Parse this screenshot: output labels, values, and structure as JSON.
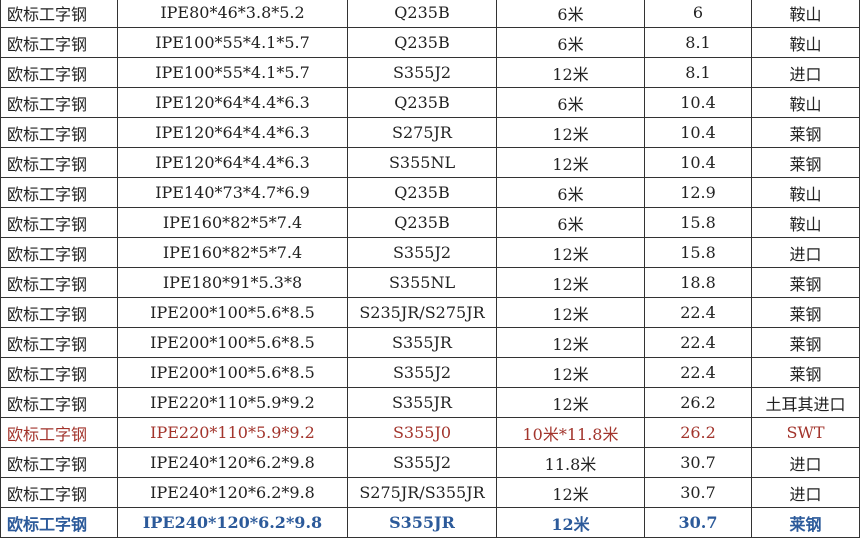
{
  "table": {
    "rows": [
      [
        "欧标工字钢",
        "IPE80*46*3.8*5.2",
        "Q235B",
        "6米",
        "6",
        "鞍山"
      ],
      [
        "欧标工字钢",
        "IPE100*55*4.1*5.7",
        "Q235B",
        "6米",
        "8.1",
        "鞍山"
      ],
      [
        "欧标工字钢",
        "IPE100*55*4.1*5.7",
        "S355J2",
        "12米",
        "8.1",
        "进口"
      ],
      [
        "欧标工字钢",
        "IPE120*64*4.4*6.3",
        "Q235B",
        "6米",
        "10.4",
        "鞍山"
      ],
      [
        "欧标工字钢",
        "IPE120*64*4.4*6.3",
        "S275JR",
        "12米",
        "10.4",
        "莱钢"
      ],
      [
        "欧标工字钢",
        "IPE120*64*4.4*6.3",
        "S355NL",
        "12米",
        "10.4",
        "莱钢"
      ],
      [
        "欧标工字钢",
        "IPE140*73*4.7*6.9",
        "Q235B",
        "6米",
        "12.9",
        "鞍山"
      ],
      [
        "欧标工字钢",
        "IPE160*82*5*7.4",
        "Q235B",
        "6米",
        "15.8",
        "鞍山"
      ],
      [
        "欧标工字钢",
        "IPE160*82*5*7.4",
        "S355J2",
        "12米",
        "15.8",
        "进口"
      ],
      [
        "欧标工字钢",
        "IPE180*91*5.3*8",
        "S355NL",
        "12米",
        "18.8",
        "莱钢"
      ],
      [
        "欧标工字钢",
        "IPE200*100*5.6*8.5",
        "S235JR/S275JR",
        "12米",
        "22.4",
        "莱钢"
      ],
      [
        "欧标工字钢",
        "IPE200*100*5.6*8.5",
        "S355JR",
        "12米",
        "22.4",
        "莱钢"
      ],
      [
        "欧标工字钢",
        "IPE200*100*5.6*8.5",
        "S355J2",
        "12米",
        "22.4",
        "莱钢"
      ],
      [
        "欧标工字钢",
        "IPE220*110*5.9*9.2",
        "S355JR",
        "12米",
        "26.2",
        "土耳其进口"
      ],
      [
        "欧标工字钢",
        "IPE220*110*5.9*9.2",
        "S355J0",
        "10米*11.8米",
        "26.2",
        "SWT"
      ],
      [
        "欧标工字钢",
        "IPE240*120*6.2*9.8",
        "S355J2",
        "11.8米",
        "30.7",
        "进口"
      ],
      [
        "欧标工字钢",
        "IPE240*120*6.2*9.8",
        "S275JR/S355JR",
        "12米",
        "30.7",
        "进口"
      ],
      [
        "欧标工字钢",
        "IPE240*120*6.2*9.8",
        "S355JR",
        "12米",
        "30.7",
        "莱钢"
      ]
    ]
  }
}
